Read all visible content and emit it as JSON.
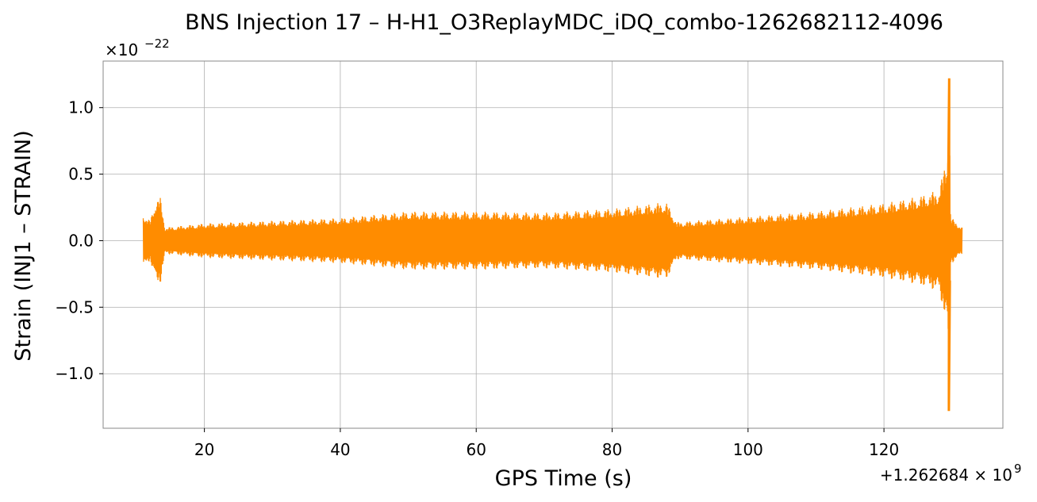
{
  "chart_data": {
    "type": "line",
    "title": "BNS Injection 17 – H-H1_O3ReplayMDC_iDQ_combo-1262682112-4096",
    "xlabel": "GPS Time (s)",
    "ylabel": "Strain (INJ1 – STRAIN)",
    "y_scale_label": "×10",
    "y_scale_exp": "−22",
    "x_offset_label": "+1.262684 × 10",
    "x_offset_exp": "9",
    "xlim": [
      5.1,
      137.5
    ],
    "ylim": [
      -1.41,
      1.35
    ],
    "xticks": [
      20,
      40,
      60,
      80,
      100,
      120
    ],
    "xtick_labels": [
      "20",
      "40",
      "60",
      "80",
      "100",
      "120"
    ],
    "yticks": [
      1.0,
      0.5,
      0.0,
      -0.5,
      -1.0
    ],
    "ytick_labels": [
      "1.0",
      "0.5",
      "0.0",
      "−0.5",
      "−1.0"
    ],
    "grid": true,
    "series": [
      {
        "color": "#ff8c00",
        "x_range": [
          11.0,
          131.5
        ],
        "envelope": [
          [
            11.0,
            0.2
          ],
          [
            12.0,
            0.15
          ],
          [
            12.8,
            0.3
          ],
          [
            13.5,
            0.33
          ],
          [
            14.2,
            0.1
          ],
          [
            20,
            0.13
          ],
          [
            30,
            0.15
          ],
          [
            40,
            0.17
          ],
          [
            50,
            0.22
          ],
          [
            60,
            0.22
          ],
          [
            70,
            0.21
          ],
          [
            80,
            0.24
          ],
          [
            88,
            0.29
          ],
          [
            89.5,
            0.14
          ],
          [
            100,
            0.18
          ],
          [
            110,
            0.22
          ],
          [
            120,
            0.28
          ],
          [
            125,
            0.33
          ],
          [
            128,
            0.38
          ],
          [
            129.3,
            0.62
          ],
          [
            129.6,
            1.22
          ],
          [
            129.8,
            0.18
          ],
          [
            131.5,
            0.1
          ]
        ],
        "peak_min": -1.28
      }
    ]
  }
}
